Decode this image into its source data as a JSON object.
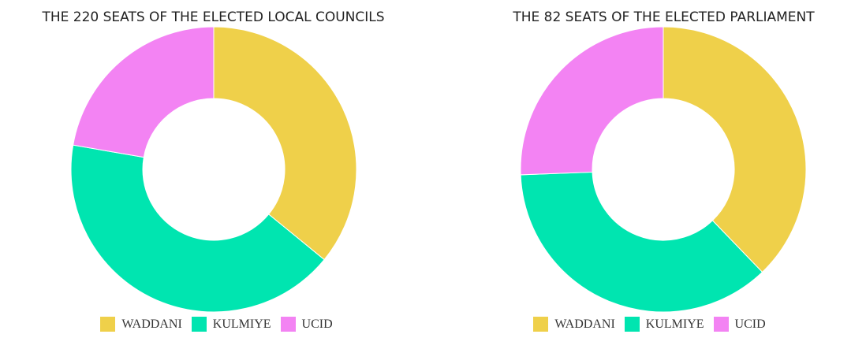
{
  "chart_data": [
    {
      "type": "pie",
      "title": "THE 220 SEATS OF THE ELECTED LOCAL COUNCILS",
      "categories": [
        "WADDANI",
        "KULMIYE",
        "UCID"
      ],
      "values": [
        79,
        92,
        49
      ],
      "colors": [
        "#efd04a",
        "#00e5b0",
        "#f383f3"
      ],
      "donut": true,
      "legend": "bottom-center"
    },
    {
      "type": "pie",
      "title": "THE 82 SEATS OF THE ELECTED PARLIAMENT",
      "categories": [
        "WADDANI",
        "KULMIYE",
        "UCID"
      ],
      "values": [
        31,
        30,
        21
      ],
      "colors": [
        "#efd04a",
        "#00e5b0",
        "#f383f3"
      ],
      "donut": true,
      "legend": "bottom-center"
    }
  ]
}
